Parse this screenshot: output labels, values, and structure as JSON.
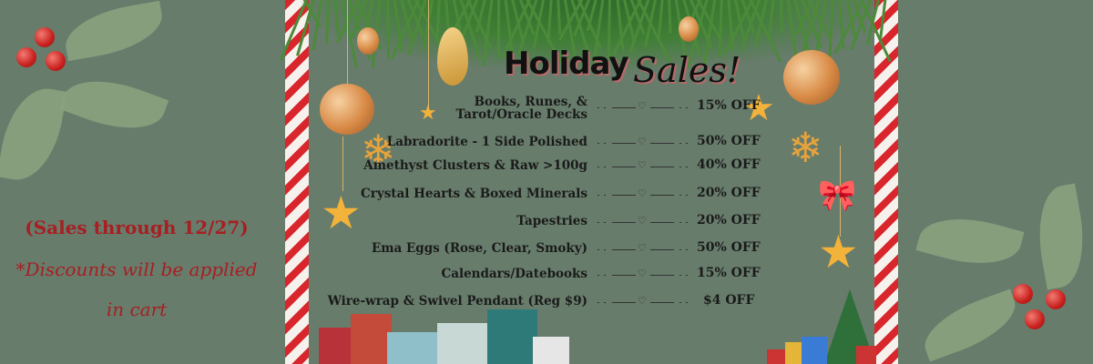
{
  "title": {
    "word1": "Holiday",
    "word2": "Sales!"
  },
  "sale_items": [
    {
      "item": "Books, Runes, &",
      "item_line2": "Tarot/Oracle Decks",
      "discount": "15% OFF"
    },
    {
      "item": "Labradorite - 1 Side Polished",
      "discount": "50% OFF"
    },
    {
      "item": "Amethyst Clusters & Raw >100g",
      "discount": "40% OFF"
    },
    {
      "item": "Crystal Hearts & Boxed Minerals",
      "discount": "20% OFF"
    },
    {
      "item": "Tapestries",
      "discount": "20% OFF"
    },
    {
      "item": "Ema Eggs (Rose, Clear, Smoky)",
      "discount": "50% OFF"
    },
    {
      "item": "Calendars/Datebooks",
      "discount": "15% OFF"
    },
    {
      "item": "Wire-wrap & Swivel Pendant (Reg $9)",
      "discount": "$4  OFF"
    }
  ],
  "notes": {
    "dates": "(Sales through 12/27)",
    "discount_line1": "*Discounts will be applied",
    "discount_line2": "in cart"
  },
  "colors": {
    "background": "#677c6b",
    "note_text": "#a81e22",
    "cane_red": "#d8262c"
  },
  "separator_icon": "heart-icon"
}
